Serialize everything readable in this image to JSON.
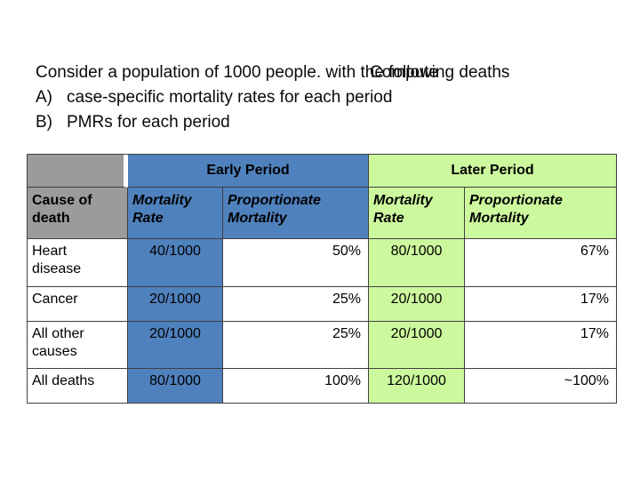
{
  "title": {
    "line1": "Consider a population of 1000 people. with the following deaths",
    "overlay": "Compute",
    "items": [
      {
        "marker": "A)",
        "text": "case-specific mortality rates for each period"
      },
      {
        "marker": "B)",
        "text": "PMRs for each period"
      }
    ]
  },
  "colors": {
    "early_period_blue": "#4f81bd",
    "later_period_green": "#cdf99e",
    "header_gray": "#9b9b9b",
    "border": "#3f3f3f"
  },
  "table": {
    "period_headers": [
      {
        "label": "Early Period"
      },
      {
        "label": "Later Period"
      }
    ],
    "column_headers": [
      "Cause of death",
      "Mortality Rate",
      "Proportionate Mortality",
      "Mortality Rate",
      "Proportionate Mortality"
    ],
    "rows": [
      {
        "cause": "Heart disease",
        "early_rate": "40/1000",
        "early_pm": "50%",
        "later_rate": "80/1000",
        "later_pm": "67%"
      },
      {
        "cause": "Cancer",
        "early_rate": "20/1000",
        "early_pm": "25%",
        "later_rate": "20/1000",
        "later_pm": "17%"
      },
      {
        "cause": "All other causes",
        "early_rate": "20/1000",
        "early_pm": "25%",
        "later_rate": "20/1000",
        "later_pm": "17%"
      },
      {
        "cause": "All deaths",
        "early_rate": "80/1000",
        "early_pm": "100%",
        "later_rate": "120/1000",
        "later_pm": "~100%"
      }
    ]
  }
}
